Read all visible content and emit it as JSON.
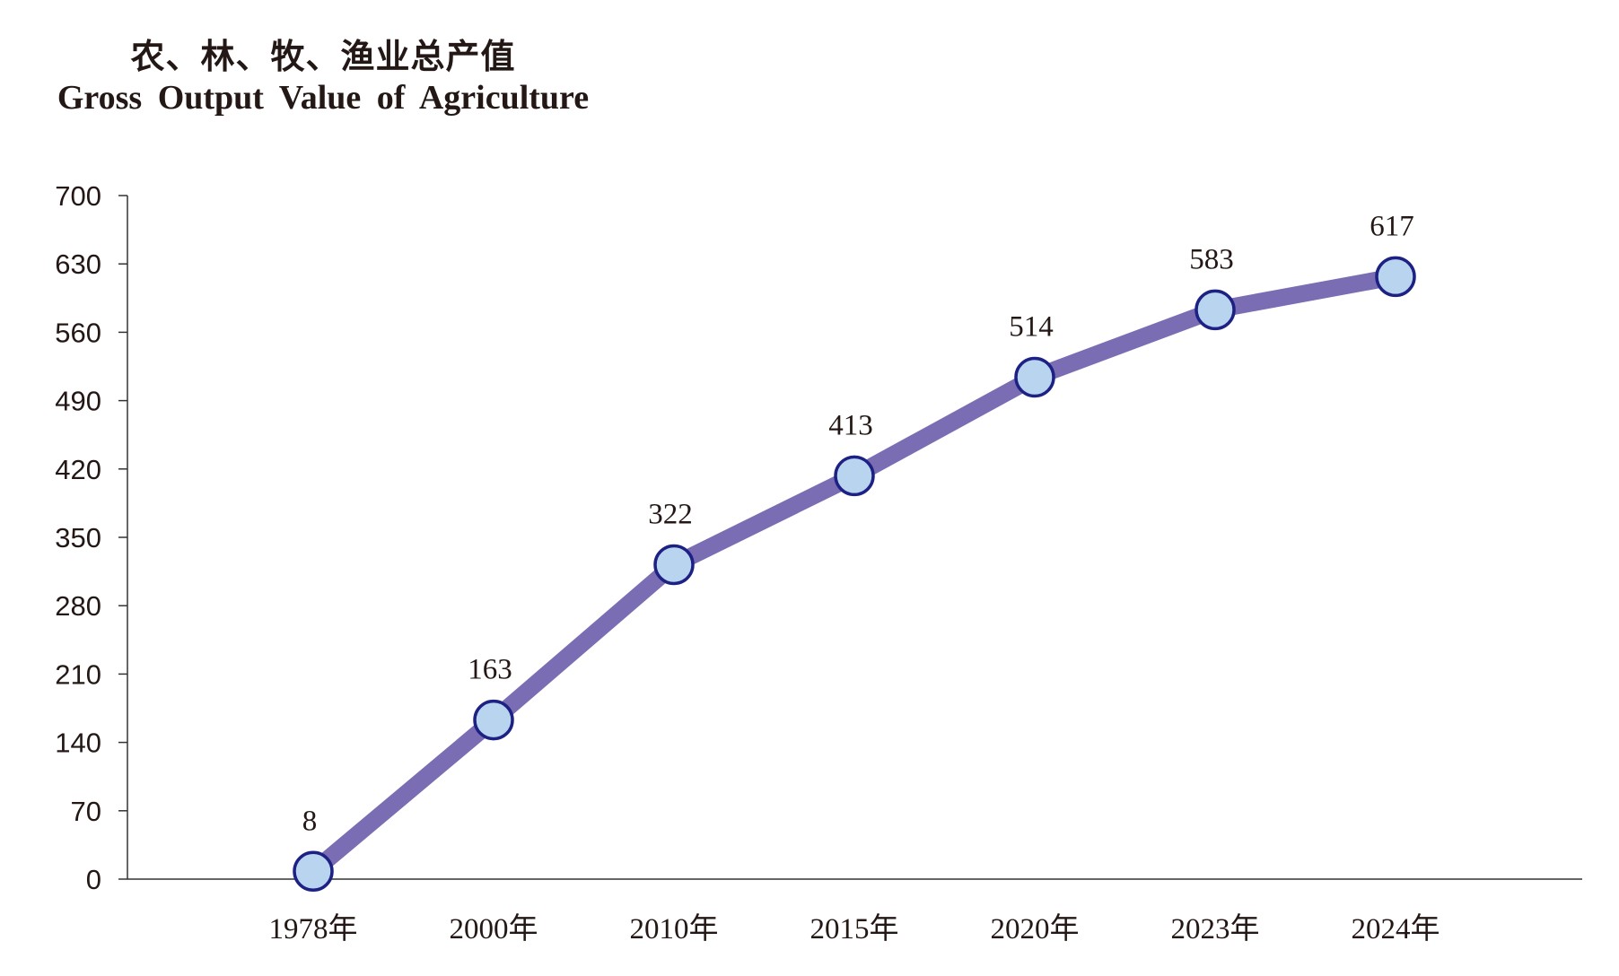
{
  "title_zh": "农、林、牧、渔业总产值",
  "title_en": "Gross Output Value of Agriculture",
  "colors": {
    "line": "#7a6db3",
    "marker_fill": "#b9d4ef",
    "marker_stroke": "#1d2183",
    "axis": "#333333",
    "text": "#231815"
  },
  "chart_data": {
    "type": "line",
    "title": "农、林、牧、渔业总产值 / Gross Output Value of Agriculture",
    "categories": [
      "1978年",
      "2000年",
      "2010年",
      "2015年",
      "2020年",
      "2023年",
      "2024年"
    ],
    "values": [
      8,
      163,
      322,
      413,
      514,
      583,
      617
    ],
    "data_labels": [
      "8",
      "163",
      "322",
      "413",
      "514",
      "583",
      "617"
    ],
    "yticks": [
      0,
      70,
      140,
      210,
      280,
      350,
      420,
      490,
      560,
      630,
      700
    ],
    "ylim": [
      0,
      700
    ],
    "xlabel": "",
    "ylabel": "",
    "grid": false,
    "legend": "none"
  }
}
